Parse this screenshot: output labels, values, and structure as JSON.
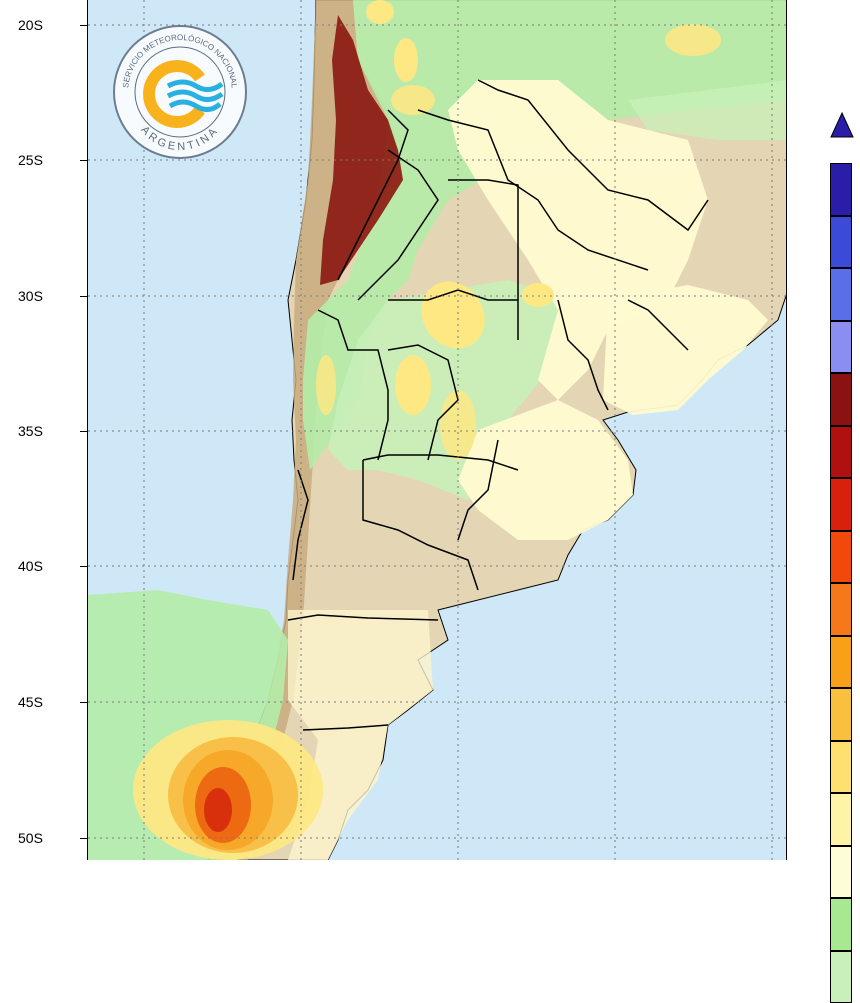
{
  "map": {
    "latitude_labels": [
      "20S",
      "25S",
      "30S",
      "35S",
      "40S",
      "45S",
      "50S"
    ],
    "colors": {
      "ocean": "#cfe8f8",
      "land_high": "#c7ad86",
      "land_low": "#e8dcc0",
      "green_light": "#c8f0b8",
      "green": "#a8e8a0",
      "cream": "#fffbd0",
      "yellow": "#fde884",
      "orange": "#f7a828",
      "orange_dark": "#ee6a12",
      "brown": "#8c1a12",
      "border": "#000000",
      "grid": "#7a7a7a"
    }
  },
  "logo": {
    "top_text": "SERVICIO METEOROLÓGICO NACIONAL",
    "bottom_text": "ARGENTINA",
    "icon": "smn-wave-sun-icon"
  },
  "colorbar": {
    "arrow": "triangle-up-icon",
    "colors": [
      "#2a1da8",
      "#3c4ad8",
      "#5a6ee8",
      "#8a8ef0",
      "#8c1212",
      "#b01010",
      "#d8200c",
      "#f2480c",
      "#f7781a",
      "#f8a018",
      "#f9c040",
      "#fde070",
      "#fff3a8",
      "#fffcd8",
      "#a8e890",
      "#c8f0b8"
    ]
  }
}
